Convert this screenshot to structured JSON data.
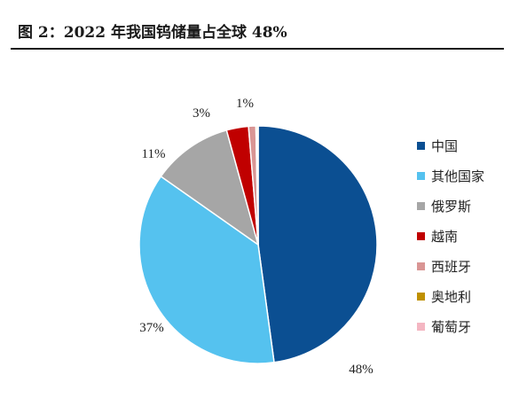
{
  "title": "图 2：2022 年我国钨储量占全球 48%",
  "chart_data": {
    "type": "pie",
    "start_angle_deg": 0,
    "direction": "clockwise",
    "slices": [
      {
        "label": "中国",
        "value": 48,
        "display": "48%",
        "color": "#0b4f92"
      },
      {
        "label": "其他国家",
        "value": 37,
        "display": "37%",
        "color": "#55c2ef"
      },
      {
        "label": "俄罗斯",
        "value": 11,
        "display": "11%",
        "color": "#a6a6a6"
      },
      {
        "label": "越南",
        "value": 3,
        "display": "3%",
        "color": "#c00000"
      },
      {
        "label": "西班牙",
        "value": 1,
        "display": "1%",
        "color": "#d99594"
      },
      {
        "label": "奥地利",
        "value": 0.2,
        "display": "",
        "color": "#bf9000"
      },
      {
        "label": "葡萄牙",
        "value": 0.1,
        "display": "",
        "color": "#f4b6c2"
      }
    ],
    "legend_position": "right"
  }
}
